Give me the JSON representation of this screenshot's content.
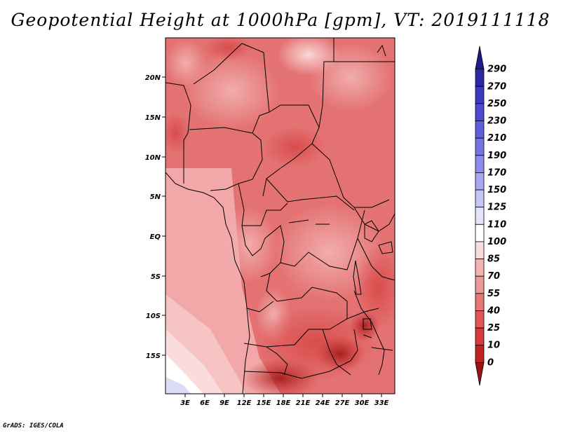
{
  "title": "Geopotential Height at 1000hPa [gpm], VT: 2019111118",
  "credit": "GrADS: IGES/COLA",
  "lat_labels": [
    "20N",
    "15N",
    "10N",
    "5N",
    "EQ",
    "5S",
    "10S",
    "15S"
  ],
  "lon_labels": [
    "3E",
    "6E",
    "9E",
    "12E",
    "15E",
    "18E",
    "21E",
    "24E",
    "27E",
    "30E",
    "33E"
  ],
  "colorbar": {
    "levels": [
      "290",
      "270",
      "250",
      "230",
      "210",
      "190",
      "170",
      "150",
      "125",
      "110",
      "100",
      "85",
      "70",
      "55",
      "40",
      "25",
      "10",
      "0"
    ],
    "colors": [
      "#1c1a8c",
      "#2a28a6",
      "#3c3bbd",
      "#4d4bcf",
      "#5f5fdc",
      "#7474e6",
      "#8c8cee",
      "#a8a8f2",
      "#c6c6f7",
      "#e4e4fb",
      "#ffffff",
      "#fbdcdc",
      "#f5b4b4",
      "#ee9898",
      "#e87878",
      "#e25656",
      "#d83a3a",
      "#c02222",
      "#9a1414"
    ]
  }
}
